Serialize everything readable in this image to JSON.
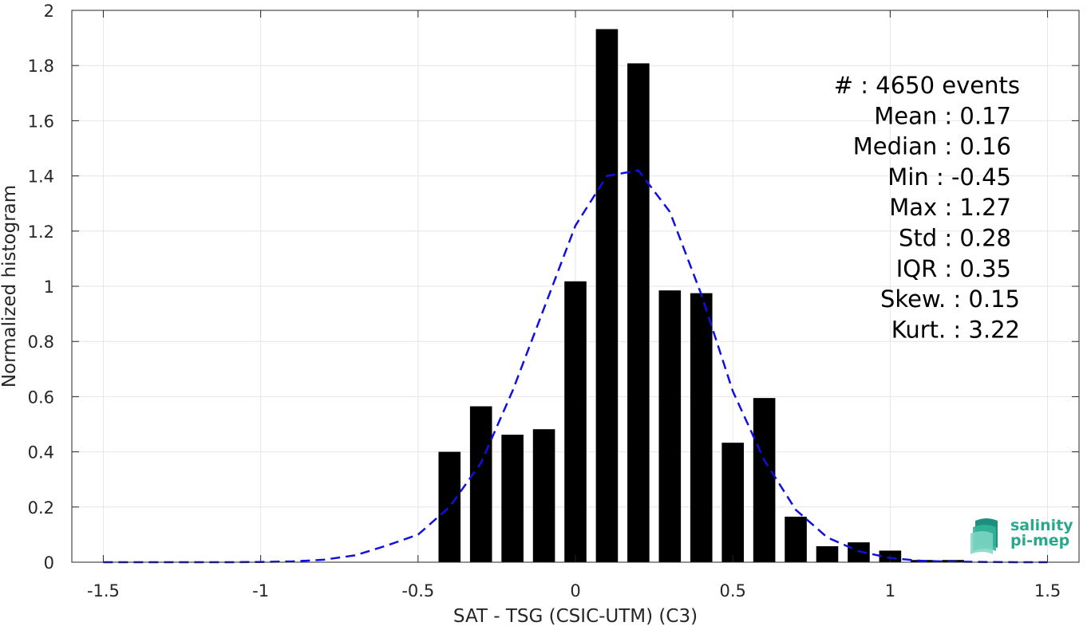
{
  "chart_data": {
    "type": "bar",
    "xlabel": "SAT - TSG (CSIC-UTM) (C3)",
    "ylabel": "Normalized histogram",
    "xlim": [
      -1.6,
      1.6
    ],
    "ylim": [
      0,
      2
    ],
    "xticks": [
      -1.5,
      -1,
      -0.5,
      0,
      0.5,
      1,
      1.5
    ],
    "xtick_labels": [
      "-1.5",
      "-1",
      "-0.5",
      "0",
      "0.5",
      "1",
      "1.5"
    ],
    "yticks": [
      0,
      0.2,
      0.4,
      0.6,
      0.8,
      1,
      1.2,
      1.4,
      1.6,
      1.8,
      2
    ],
    "ytick_labels": [
      "0",
      "0.2",
      "0.4",
      "0.6",
      "0.8",
      "1",
      "1.2",
      "1.4",
      "1.6",
      "1.8",
      "2"
    ],
    "grid": true,
    "bar_color": "#000000",
    "bar_width": 0.07,
    "bars": [
      {
        "x": -0.4,
        "y": 0.4
      },
      {
        "x": -0.3,
        "y": 0.565
      },
      {
        "x": -0.2,
        "y": 0.462
      },
      {
        "x": -0.1,
        "y": 0.482
      },
      {
        "x": 0.0,
        "y": 1.018
      },
      {
        "x": 0.1,
        "y": 1.932
      },
      {
        "x": 0.2,
        "y": 1.808
      },
      {
        "x": 0.3,
        "y": 0.985
      },
      {
        "x": 0.4,
        "y": 0.975
      },
      {
        "x": 0.5,
        "y": 0.433
      },
      {
        "x": 0.6,
        "y": 0.595
      },
      {
        "x": 0.7,
        "y": 0.165
      },
      {
        "x": 0.8,
        "y": 0.058
      },
      {
        "x": 0.9,
        "y": 0.072
      },
      {
        "x": 1.0,
        "y": 0.042
      },
      {
        "x": 1.1,
        "y": 0.008
      },
      {
        "x": 1.2,
        "y": 0.008
      }
    ],
    "fit_curve": {
      "color": "#1010e0",
      "style": "dashed",
      "x": [
        -1.5,
        -1.4,
        -1.3,
        -1.2,
        -1.1,
        -1.0,
        -0.9,
        -0.8,
        -0.7,
        -0.6,
        -0.5,
        -0.4,
        -0.3,
        -0.2,
        -0.1,
        0.0,
        0.1,
        0.2,
        0.3,
        0.4,
        0.5,
        0.6,
        0.7,
        0.8,
        0.9,
        1.0,
        1.1,
        1.2,
        1.3,
        1.4,
        1.5
      ],
      "y": [
        0,
        0,
        0,
        0,
        0,
        0.001,
        0.003,
        0.009,
        0.025,
        0.06,
        0.1,
        0.2,
        0.36,
        0.62,
        0.92,
        1.22,
        1.4,
        1.42,
        1.27,
        0.97,
        0.62,
        0.37,
        0.19,
        0.09,
        0.04,
        0.015,
        0.005,
        0.002,
        0.001,
        0,
        0
      ]
    }
  },
  "stats": [
    {
      "label": "#  : 4650 events"
    },
    {
      "label": "Mean : 0.17"
    },
    {
      "label": "Median : 0.16"
    },
    {
      "label": "Min : -0.45"
    },
    {
      "label": "Max : 1.27"
    },
    {
      "label": "Std : 0.28"
    },
    {
      "label": "IQR : 0.35"
    },
    {
      "label": "Skew. : 0.15"
    },
    {
      "label": "Kurt. : 3.22"
    }
  ],
  "logo": {
    "line1": "salinity",
    "line2": "pi-mep",
    "color": "#2aa88f"
  }
}
